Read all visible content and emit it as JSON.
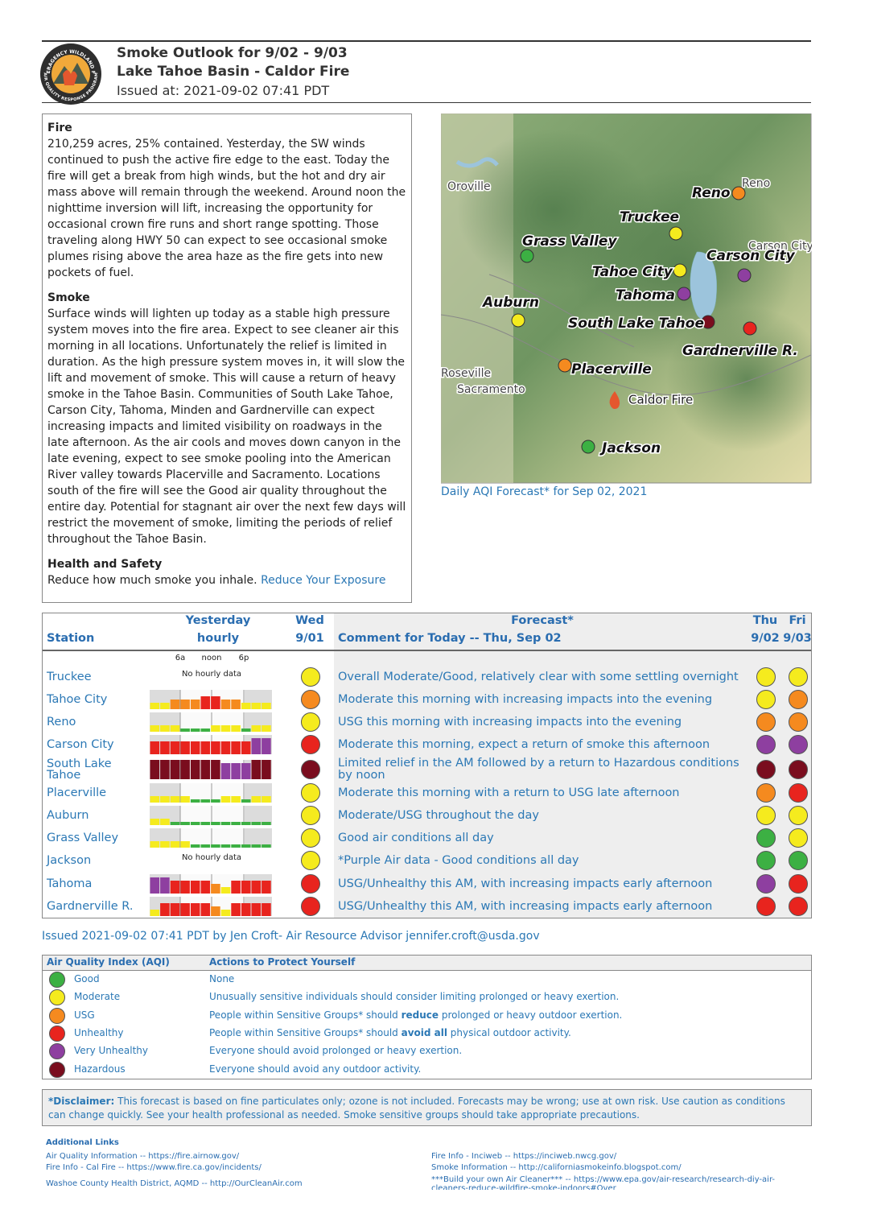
{
  "header": {
    "title": "Smoke Outlook for 9/02 - 9/03",
    "subtitle": "Lake Tahoe Basin - Caldor Fire",
    "issued": "Issued at: 2021-09-02 07:41 PDT"
  },
  "logo": {
    "top": "INTERAGENCY WILDLAND FIRE",
    "bottom": "AIR QUALITY RESPONSE PROGRAM"
  },
  "narrative": {
    "fire_heading": "Fire",
    "fire_text": "210,259 acres, 25% contained. Yesterday, the SW winds continued to push the active fire edge to the east. Today the fire will get a break from high winds, but the hot and dry air mass above will remain through the weekend. Around noon the nighttime inversion will lift, increasing the opportunity for occasional crown fire runs and short range spotting. Those traveling along HWY 50 can expect to see occasional smoke plumes rising above the area haze as the fire gets into new pockets of fuel.",
    "smoke_heading": "Smoke",
    "smoke_text": "Surface winds will lighten up today as a stable high pressure system moves into the fire area. Expect to see cleaner air this morning in all locations. Unfortunately the relief is limited in duration. As the high pressure system moves in, it will slow the lift and movement of smoke. This will cause a return of heavy smoke in the Tahoe Basin. Communities of South Lake Tahoe, Carson City, Tahoma, Minden and Gardnerville can expect increasing impacts and limited visibility on roadways in the late afternoon. As the air cools and moves down canyon in the late evening, expect to see smoke pooling into the American River valley towards Placerville and Sacramento. Locations south of the fire will see the Good air quality throughout the entire day. Potential for stagnant air over the next few days will restrict the movement of smoke, limiting the periods of relief throughout the Tahoe Basin.",
    "health_heading": "Health and Safety",
    "health_text": "Reduce how much smoke you inhale.",
    "health_link": "Reduce Your Exposure"
  },
  "map": {
    "places": [
      {
        "name": "Reno",
        "color": "#f58a1f"
      },
      {
        "name": "Truckee",
        "color": "#f5eb1e"
      },
      {
        "name": "Grass Valley",
        "color": "#3cb043"
      },
      {
        "name": "Tahoe City",
        "color": "#f5eb1e"
      },
      {
        "name": "Carson City",
        "color": "#8e3fa0"
      },
      {
        "name": "Tahoma",
        "color": "#8e3fa0"
      },
      {
        "name": "South Lake Tahoe",
        "color": "#7a0d1e"
      },
      {
        "name": "Gardnerville R.",
        "color": "#e8241e"
      },
      {
        "name": "Auburn",
        "color": "#f5eb1e"
      },
      {
        "name": "Placerville",
        "color": "#f58a1f"
      },
      {
        "name": "Jackson",
        "color": "#3cb043"
      }
    ],
    "towns": [
      "Oroville",
      "Reno",
      "Carson City",
      "Roseville",
      "Sacramento"
    ],
    "fire": "Caldor Fire",
    "caption": "Daily AQI Forecast* for Sep 02, 2021"
  },
  "forecast_table": {
    "headers": {
      "station": "Station",
      "yesterday": "Yesterday",
      "hourly": "hourly",
      "wed": "Wed",
      "wed_date": "9/01",
      "forecast": "Forecast*",
      "comment": "Comment for Today -- Thu, Sep 02",
      "thu": "Thu",
      "thu_date": "9/02",
      "fri": "Fri",
      "fri_date": "9/03"
    },
    "hourly_ticks": [
      "6a",
      "noon",
      "6p"
    ],
    "no_hourly": "No hourly data",
    "rows": [
      {
        "station": "Truckee",
        "hourly": null,
        "wed": "#f5eb1e",
        "comment": "Overall Moderate/Good, relatively clear with some settling overnight",
        "thu": "#f5eb1e",
        "fri": "#f5eb1e"
      },
      {
        "station": "Tahoe City",
        "hourly": [
          "#f5eb1e",
          "#f5eb1e",
          "#f58a1f",
          "#f58a1f",
          "#f58a1f",
          "#e8241e",
          "#e8241e",
          "#f58a1f",
          "#f58a1f",
          "#f5eb1e",
          "#f5eb1e",
          "#f5eb1e"
        ],
        "wed": "#f58a1f",
        "comment": "Moderate this morning with increasing impacts into the evening",
        "thu": "#f5eb1e",
        "fri": "#f58a1f"
      },
      {
        "station": "Reno",
        "hourly": [
          "#f5eb1e",
          "#f5eb1e",
          "#f5eb1e",
          "#3cb043",
          "#3cb043",
          "#3cb043",
          "#f5eb1e",
          "#f5eb1e",
          "#f5eb1e",
          "#3cb043",
          "#f5eb1e",
          "#f5eb1e"
        ],
        "wed": "#f5eb1e",
        "comment": "USG this morning with increasing impacts into the evening",
        "thu": "#f58a1f",
        "fri": "#f58a1f"
      },
      {
        "station": "Carson City",
        "hourly": [
          "#e8241e",
          "#e8241e",
          "#e8241e",
          "#e8241e",
          "#e8241e",
          "#e8241e",
          "#e8241e",
          "#e8241e",
          "#e8241e",
          "#e8241e",
          "#8e3fa0",
          "#8e3fa0"
        ],
        "wed": "#e8241e",
        "comment": "Moderate this morning, expect a return of smoke this afternoon",
        "thu": "#8e3fa0",
        "fri": "#8e3fa0"
      },
      {
        "station": "South Lake Tahoe",
        "hourly": [
          "#7a0d1e",
          "#7a0d1e",
          "#7a0d1e",
          "#7a0d1e",
          "#7a0d1e",
          "#7a0d1e",
          "#7a0d1e",
          "#8e3fa0",
          "#8e3fa0",
          "#8e3fa0",
          "#7a0d1e",
          "#7a0d1e"
        ],
        "wed": "#7a0d1e",
        "comment": "Limited relief in the AM followed by a return to Hazardous conditions by noon",
        "thu": "#7a0d1e",
        "fri": "#7a0d1e"
      },
      {
        "station": "Placerville",
        "hourly": [
          "#f5eb1e",
          "#f5eb1e",
          "#f5eb1e",
          "#f5eb1e",
          "#3cb043",
          "#3cb043",
          "#3cb043",
          "#f5eb1e",
          "#f5eb1e",
          "#3cb043",
          "#f5eb1e",
          "#f5eb1e"
        ],
        "wed": "#f5eb1e",
        "comment": "Moderate this morning with a return to USG late afternoon",
        "thu": "#f58a1f",
        "fri": "#e8241e"
      },
      {
        "station": "Auburn",
        "hourly": [
          "#f5eb1e",
          "#f5eb1e",
          "#3cb043",
          "#3cb043",
          "#3cb043",
          "#3cb043",
          "#3cb043",
          "#3cb043",
          "#3cb043",
          "#3cb043",
          "#3cb043",
          "#3cb043"
        ],
        "wed": "#f5eb1e",
        "comment": "Moderate/USG throughout the day",
        "thu": "#f5eb1e",
        "fri": "#f5eb1e"
      },
      {
        "station": "Grass Valley",
        "hourly": [
          "#f5eb1e",
          "#f5eb1e",
          "#f5eb1e",
          "#f5eb1e",
          "#3cb043",
          "#3cb043",
          "#3cb043",
          "#3cb043",
          "#3cb043",
          "#3cb043",
          "#3cb043",
          "#3cb043"
        ],
        "wed": "#f5eb1e",
        "comment": "Good air conditions all day",
        "thu": "#3cb043",
        "fri": "#f5eb1e"
      },
      {
        "station": "Jackson",
        "hourly": null,
        "wed": "#f5eb1e",
        "comment": "*Purple Air data - Good conditions all day",
        "thu": "#3cb043",
        "fri": "#3cb043"
      },
      {
        "station": "Tahoma",
        "hourly": [
          "#8e3fa0",
          "#8e3fa0",
          "#e8241e",
          "#e8241e",
          "#e8241e",
          "#e8241e",
          "#f58a1f",
          "#f5eb1e",
          "#e8241e",
          "#e8241e",
          "#e8241e",
          "#e8241e"
        ],
        "wed": "#e8241e",
        "comment": "USG/Unhealthy this AM, with increasing impacts early afternoon",
        "thu": "#8e3fa0",
        "fri": "#e8241e"
      },
      {
        "station": "Gardnerville R.",
        "hourly": [
          "#f5eb1e",
          "#e8241e",
          "#e8241e",
          "#e8241e",
          "#e8241e",
          "#e8241e",
          "#f58a1f",
          "#f5eb1e",
          "#e8241e",
          "#e8241e",
          "#e8241e",
          "#e8241e"
        ],
        "wed": "#e8241e",
        "comment": "USG/Unhealthy this AM, with increasing impacts early afternoon",
        "thu": "#e8241e",
        "fri": "#e8241e"
      }
    ]
  },
  "issued_by": "Issued 2021-09-02 07:41 PDT by Jen Croft- Air Resource Advisor jennifer.croft@usda.gov",
  "aqi_legend": {
    "headers": [
      "Air Quality Index (AQI)",
      "Actions to Protect Yourself"
    ],
    "rows": [
      {
        "color": "#3cb043",
        "name": "Good",
        "action": "None"
      },
      {
        "color": "#f5eb1e",
        "name": "Moderate",
        "action": "Unusually sensitive individuals should consider limiting prolonged or heavy exertion."
      },
      {
        "color": "#f58a1f",
        "name": "USG",
        "action": {
          "pre": "People within Sensitive Groups* should ",
          "bold": "reduce",
          "post": " prolonged or heavy outdoor exertion."
        }
      },
      {
        "color": "#e8241e",
        "name": "Unhealthy",
        "action": {
          "pre": "People within Sensitive Groups* should ",
          "bold": "avoid all",
          "post": " physical outdoor activity."
        }
      },
      {
        "color": "#8e3fa0",
        "name": "Very Unhealthy",
        "action": "Everyone should avoid prolonged or heavy exertion."
      },
      {
        "color": "#7a0d1e",
        "name": "Hazardous",
        "action": "Everyone should avoid any outdoor activity."
      }
    ]
  },
  "disclaimer": {
    "label": "*Disclaimer:",
    "text": "This forecast is based on fine particulates only; ozone is not included. Forecasts may be wrong; use at own risk. Use caution as conditions can change quickly. See your health professional as needed. Smoke sensitive groups should take appropriate precautions."
  },
  "links": {
    "title": "Additional Links",
    "left": [
      "Air Quality Information -- https://fire.airnow.gov/",
      "Fire Info - Cal Fire  -- https://www.fire.ca.gov/incidents/",
      "Washoe County Health District, AQMD -- http://OurCleanAir.com"
    ],
    "right": [
      "Fire Info - Inciweb  -- https://inciweb.nwcg.gov/",
      "Smoke Information -- http://californiasmokeinfo.blogspot.com/",
      "***Build your own Air Cleaner*** -- https://www.epa.gov/air-research/research-diy-air-cleaners-reduce-wildfire-smoke-indoors#Over"
    ]
  }
}
